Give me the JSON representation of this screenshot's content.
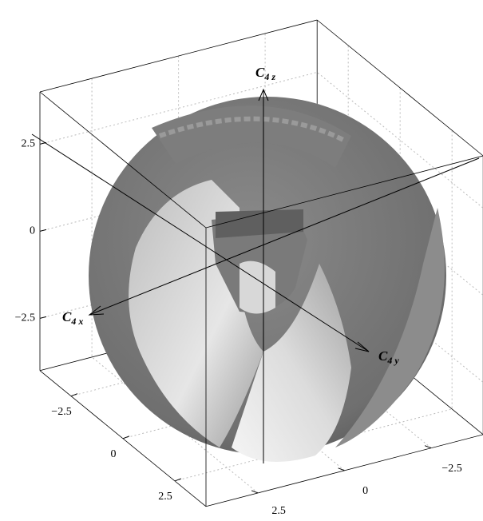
{
  "chart_data": {
    "type": "surface3d",
    "xlim": [
      -4,
      4
    ],
    "ylim": [
      -4,
      4
    ],
    "zlim": [
      -4,
      4
    ],
    "xticks": [
      {
        "value": -2.5,
        "label": "−2.5"
      },
      0,
      2.5
    ],
    "yticks": [
      {
        "value": -2.5,
        "label": "−2.5"
      },
      0,
      2.5
    ],
    "zticks": [
      {
        "value": -2.5,
        "label": "−2.5"
      },
      0,
      2.5
    ],
    "xlabel": {
      "base": "C",
      "sub": "4 x"
    },
    "ylabel": {
      "base": "C",
      "sub": "4 y"
    },
    "zlabel": {
      "base": "C",
      "sub": "4 z"
    },
    "grid": true
  }
}
